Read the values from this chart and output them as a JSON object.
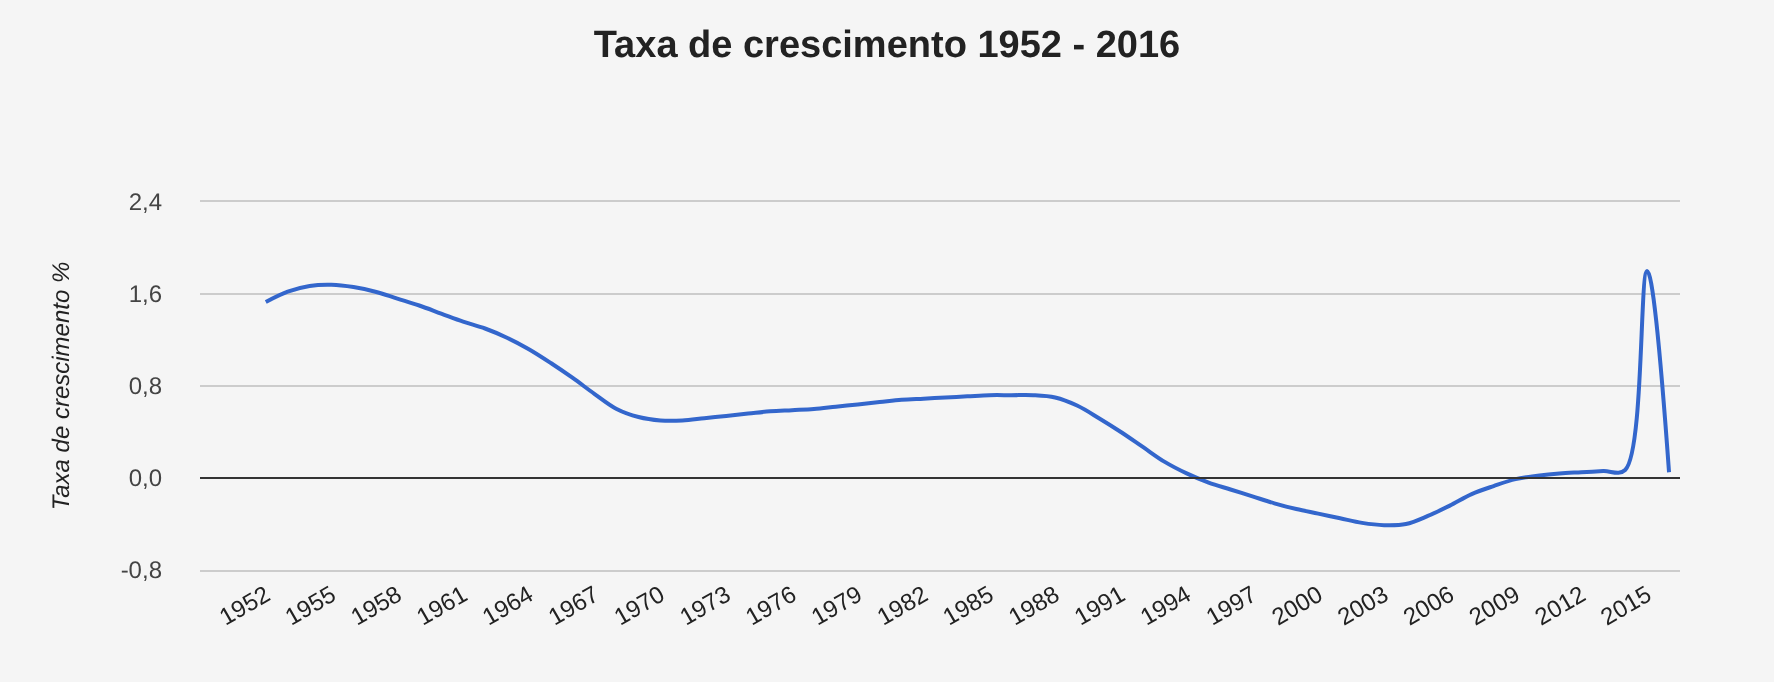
{
  "chart_data": {
    "type": "line",
    "title": "Taxa de crescimento 1952 - 2016",
    "ylabel": "Taxa de crescimento %",
    "x": [
      1952,
      1953,
      1954,
      1955,
      1956,
      1957,
      1958,
      1959,
      1960,
      1961,
      1962,
      1963,
      1964,
      1965,
      1966,
      1967,
      1968,
      1969,
      1970,
      1971,
      1972,
      1973,
      1974,
      1975,
      1976,
      1977,
      1978,
      1979,
      1980,
      1981,
      1982,
      1983,
      1984,
      1985,
      1986,
      1987,
      1988,
      1989,
      1990,
      1991,
      1992,
      1993,
      1994,
      1995,
      1996,
      1997,
      1998,
      1999,
      2000,
      2001,
      2002,
      2003,
      2004,
      2005,
      2006,
      2007,
      2008,
      2009,
      2010,
      2011,
      2012,
      2013,
      2014,
      2015,
      2016
    ],
    "series": [
      {
        "color": "#3366cc",
        "values": [
          1.53,
          1.62,
          1.67,
          1.68,
          1.66,
          1.62,
          1.56,
          1.5,
          1.43,
          1.36,
          1.3,
          1.22,
          1.12,
          1.0,
          0.87,
          0.73,
          0.6,
          0.53,
          0.5,
          0.5,
          0.52,
          0.54,
          0.56,
          0.58,
          0.59,
          0.6,
          0.62,
          0.64,
          0.66,
          0.68,
          0.69,
          0.7,
          0.71,
          0.72,
          0.72,
          0.72,
          0.7,
          0.63,
          0.52,
          0.4,
          0.27,
          0.14,
          0.04,
          -0.04,
          -0.1,
          -0.16,
          -0.22,
          -0.27,
          -0.31,
          -0.35,
          -0.39,
          -0.41,
          -0.4,
          -0.33,
          -0.24,
          -0.14,
          -0.07,
          -0.01,
          0.02,
          0.04,
          0.05,
          0.06,
          0.07,
          1.8,
          0.05
        ]
      }
    ],
    "xlim": [
      1949,
      2016.5
    ],
    "xticks": [
      1952,
      1955,
      1958,
      1961,
      1964,
      1967,
      1970,
      1973,
      1976,
      1979,
      1982,
      1985,
      1988,
      1991,
      1994,
      1997,
      2000,
      2003,
      2006,
      2009,
      2012,
      2015
    ],
    "ylim": [
      -0.8,
      2.4
    ],
    "yticks": [
      {
        "value": -0.8,
        "label": "-0,8"
      },
      {
        "value": 0,
        "label": "0,0"
      },
      {
        "value": 0.8,
        "label": "0,8"
      },
      {
        "value": 1.6,
        "label": "1,6"
      },
      {
        "value": 2.4,
        "label": "2,4"
      }
    ],
    "ref_lines": [
      {
        "axis": "y",
        "value": 0,
        "color": "#333333"
      }
    ],
    "grid": "y",
    "marker": "none",
    "line_style": "solid"
  }
}
